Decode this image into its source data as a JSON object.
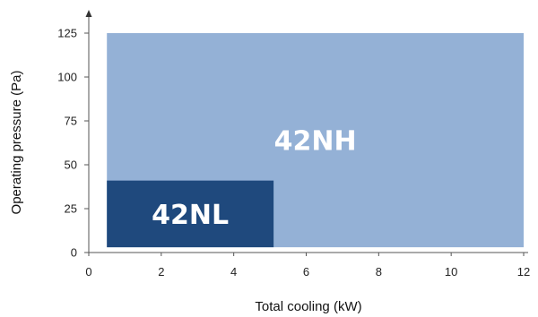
{
  "chart_data": {
    "type": "area",
    "xlabel": "Total cooling (kW)",
    "ylabel": "Operating pressure (Pa)",
    "xlim": [
      0,
      12
    ],
    "ylim": [
      0,
      125
    ],
    "x_ticks": [
      0,
      2,
      4,
      6,
      8,
      10,
      12
    ],
    "y_ticks": [
      0,
      25,
      50,
      75,
      100,
      125
    ],
    "grid": false,
    "regions": [
      {
        "name": "42NH",
        "x_range": [
          0.5,
          12
        ],
        "y_range": [
          3,
          125
        ],
        "color": "#94b1d6"
      },
      {
        "name": "42NL",
        "x_range": [
          0.5,
          5.1
        ],
        "y_range": [
          3,
          41
        ],
        "color": "#1f497d"
      }
    ]
  }
}
